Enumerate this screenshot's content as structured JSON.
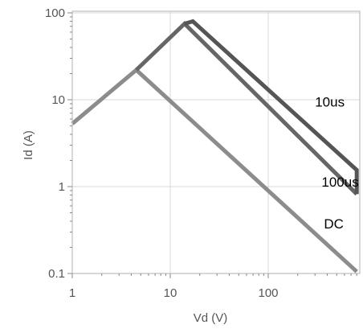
{
  "chart_data": {
    "type": "line",
    "title": "",
    "xlabel": "Vd (V)",
    "ylabel": "Id (A)",
    "x_scale": "log",
    "y_scale": "log",
    "xlim": [
      1,
      800
    ],
    "ylim": [
      0.1,
      110
    ],
    "x_ticks": [
      {
        "value": 1,
        "label": "1"
      },
      {
        "value": 10,
        "label": "10"
      },
      {
        "value": 100,
        "label": "100"
      }
    ],
    "y_ticks": [
      {
        "value": 0.1,
        "label": "0.1"
      },
      {
        "value": 1,
        "label": "1"
      },
      {
        "value": 10,
        "label": "10"
      },
      {
        "value": 100,
        "label": "100"
      }
    ],
    "grid": true,
    "series": [
      {
        "name": "DC",
        "color": "#8c8c8c",
        "points": [
          [
            1,
            5.3
          ],
          [
            4.5,
            22
          ],
          [
            800,
            0.105
          ]
        ],
        "label_at": [
          370,
          0.33
        ]
      },
      {
        "name": "100us",
        "color": "#666666",
        "points": [
          [
            4.5,
            22
          ],
          [
            14,
            75
          ],
          [
            800,
            0.82
          ]
        ],
        "label_at": [
          350,
          1.0
        ]
      },
      {
        "name": "10us",
        "color": "#555555",
        "points": [
          [
            14,
            75
          ],
          [
            17,
            80
          ],
          [
            800,
            1.55
          ],
          [
            800,
            0.82
          ]
        ],
        "label_at": [
          300,
          8.3
        ]
      }
    ]
  }
}
